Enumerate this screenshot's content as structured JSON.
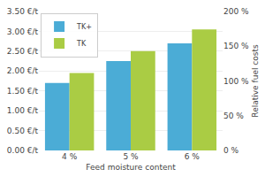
{
  "chart_data": {
    "type": "bar",
    "xlabel": "Feed moisture content",
    "y2label": "Relative fuel costs",
    "categories": [
      "4 %",
      "5 %",
      "6 %"
    ],
    "series": [
      {
        "name": "TK+",
        "color": "#4BACD6",
        "values": [
          1.7,
          2.25,
          2.7
        ]
      },
      {
        "name": "TK",
        "color": "#AACC44",
        "values": [
          1.95,
          2.5,
          3.05
        ]
      }
    ],
    "ylim": [
      0,
      3.5
    ],
    "yticks": [
      {
        "value": 0.0,
        "label": "0.00 €/t"
      },
      {
        "value": 0.5,
        "label": "0.50 €/t"
      },
      {
        "value": 1.0,
        "label": "1.00 €/t"
      },
      {
        "value": 1.5,
        "label": "1.50 €/t"
      },
      {
        "value": 2.0,
        "label": "2.00 €/t"
      },
      {
        "value": 2.5,
        "label": "2.50 €/t"
      },
      {
        "value": 3.0,
        "label": "3.00 €/t"
      },
      {
        "value": 3.5,
        "label": "3.50 €/t"
      }
    ],
    "y2lim": [
      0,
      200
    ],
    "y2ticks": [
      {
        "value": 0,
        "label": "0 %"
      },
      {
        "value": 50,
        "label": "50 %"
      },
      {
        "value": 100,
        "label": "100 %"
      },
      {
        "value": 150,
        "label": "150 %"
      },
      {
        "value": 200,
        "label": "200 %"
      }
    ],
    "grid": true,
    "legend": "upper left"
  }
}
